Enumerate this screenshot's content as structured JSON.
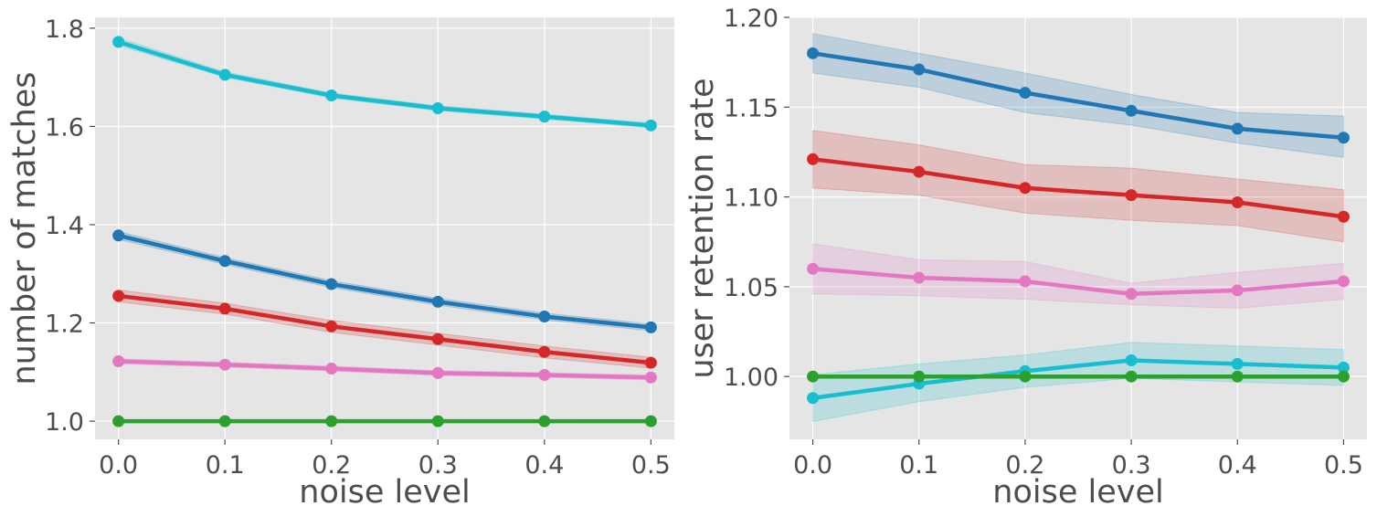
{
  "chart_data": [
    {
      "type": "line",
      "title": "",
      "xlabel": "noise level",
      "ylabel": "number of matches",
      "x": [
        0.0,
        0.1,
        0.2,
        0.3,
        0.4,
        0.5
      ],
      "x_tick_labels": [
        "0.0",
        "0.1",
        "0.2",
        "0.3",
        "0.4",
        "0.5"
      ],
      "xlim": [
        -0.022,
        0.522
      ],
      "y_ticks": [
        1.0,
        1.2,
        1.4,
        1.6,
        1.8
      ],
      "y_tick_labels": [
        "1.0",
        "1.2",
        "1.4",
        "1.6",
        "1.8"
      ],
      "ylim": [
        0.963,
        1.822
      ],
      "grid": true,
      "series": [
        {
          "name": "cyan",
          "color": "#17becf",
          "values": [
            1.772,
            1.705,
            1.663,
            1.637,
            1.62,
            1.602
          ],
          "ci_low": [
            1.765,
            1.7,
            1.658,
            1.632,
            1.615,
            1.597
          ],
          "ci_high": [
            1.78,
            1.711,
            1.668,
            1.642,
            1.625,
            1.607
          ]
        },
        {
          "name": "blue",
          "color": "#1f77b4",
          "values": [
            1.378,
            1.326,
            1.279,
            1.243,
            1.213,
            1.191
          ],
          "ci_low": [
            1.37,
            1.319,
            1.272,
            1.236,
            1.206,
            1.184
          ],
          "ci_high": [
            1.386,
            1.333,
            1.286,
            1.25,
            1.22,
            1.198
          ]
        },
        {
          "name": "red",
          "color": "#d62728",
          "values": [
            1.255,
            1.229,
            1.193,
            1.167,
            1.141,
            1.119
          ],
          "ci_low": [
            1.243,
            1.218,
            1.181,
            1.155,
            1.129,
            1.108
          ],
          "ci_high": [
            1.267,
            1.24,
            1.205,
            1.179,
            1.153,
            1.13
          ]
        },
        {
          "name": "pink",
          "color": "#e377c2",
          "values": [
            1.122,
            1.115,
            1.107,
            1.098,
            1.094,
            1.089
          ],
          "ci_low": [
            1.117,
            1.11,
            1.102,
            1.093,
            1.089,
            1.084
          ],
          "ci_high": [
            1.127,
            1.12,
            1.112,
            1.103,
            1.099,
            1.094
          ]
        },
        {
          "name": "green",
          "color": "#2ca02c",
          "values": [
            1.0,
            1.0,
            1.0,
            1.0,
            1.0,
            1.0
          ],
          "ci_low": [
            1.0,
            1.0,
            1.0,
            1.0,
            1.0,
            1.0
          ],
          "ci_high": [
            1.0,
            1.0,
            1.0,
            1.0,
            1.0,
            1.0
          ]
        }
      ]
    },
    {
      "type": "line",
      "title": "",
      "xlabel": "noise level",
      "ylabel": "user retention rate",
      "x": [
        0.0,
        0.1,
        0.2,
        0.3,
        0.4,
        0.5
      ],
      "x_tick_labels": [
        "0.0",
        "0.1",
        "0.2",
        "0.3",
        "0.4",
        "0.5"
      ],
      "xlim": [
        -0.022,
        0.522
      ],
      "y_ticks": [
        1.0,
        1.05,
        1.1,
        1.15,
        1.2
      ],
      "y_tick_labels": [
        "1.00",
        "1.05",
        "1.10",
        "1.15",
        "1.20"
      ],
      "ylim": [
        0.965,
        1.2
      ],
      "grid": true,
      "series": [
        {
          "name": "blue",
          "color": "#1f77b4",
          "values": [
            1.18,
            1.171,
            1.158,
            1.148,
            1.138,
            1.133
          ],
          "ci_low": [
            1.169,
            1.161,
            1.147,
            1.14,
            1.13,
            1.122
          ],
          "ci_high": [
            1.191,
            1.18,
            1.169,
            1.157,
            1.147,
            1.145
          ]
        },
        {
          "name": "red",
          "color": "#d62728",
          "values": [
            1.121,
            1.114,
            1.105,
            1.101,
            1.097,
            1.089
          ],
          "ci_low": [
            1.105,
            1.101,
            1.091,
            1.087,
            1.084,
            1.075
          ],
          "ci_high": [
            1.137,
            1.129,
            1.118,
            1.116,
            1.11,
            1.104
          ]
        },
        {
          "name": "pink",
          "color": "#e377c2",
          "values": [
            1.06,
            1.055,
            1.053,
            1.046,
            1.048,
            1.053
          ],
          "ci_low": [
            1.046,
            1.045,
            1.043,
            1.04,
            1.038,
            1.043
          ],
          "ci_high": [
            1.074,
            1.065,
            1.064,
            1.052,
            1.058,
            1.063
          ]
        },
        {
          "name": "cyan",
          "color": "#17becf",
          "values": [
            0.988,
            0.996,
            1.003,
            1.009,
            1.007,
            1.005
          ],
          "ci_low": [
            0.975,
            0.986,
            0.994,
            0.999,
            0.997,
            0.995
          ],
          "ci_high": [
            1.001,
            1.007,
            1.012,
            1.019,
            1.017,
            1.015
          ]
        },
        {
          "name": "green",
          "color": "#2ca02c",
          "values": [
            1.0,
            1.0,
            1.0,
            1.0,
            1.0,
            1.0
          ],
          "ci_low": [
            1.0,
            1.0,
            1.0,
            1.0,
            1.0,
            1.0
          ],
          "ci_high": [
            1.0,
            1.0,
            1.0,
            1.0,
            1.0,
            1.0
          ]
        }
      ]
    }
  ],
  "colors": {
    "axes_background": "#e5e5e5",
    "grid": "#ffffff",
    "text": "#4d4d4d"
  }
}
